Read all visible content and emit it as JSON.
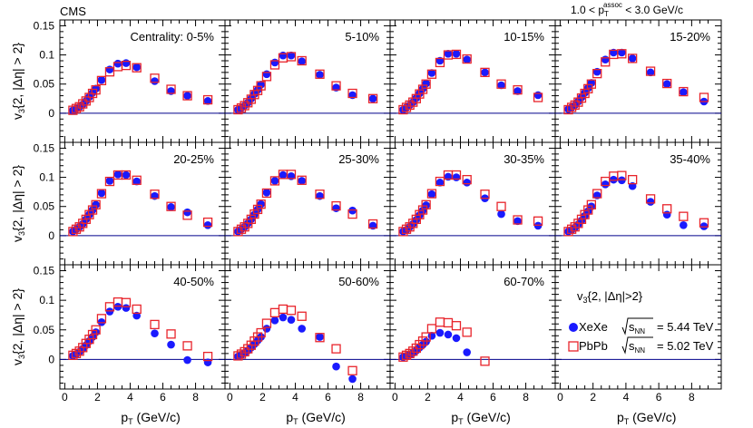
{
  "header": {
    "experiment": "CMS",
    "cut_prefix": "1.0 < p",
    "cut_sub": "T",
    "cut_sup": "assoc",
    "cut_suffix": " < 3.0 GeV/c"
  },
  "axis": {
    "x_label_main": "p",
    "x_label_sub": "T",
    "x_label_unit": " (GeV/c)",
    "y_label_v": "v",
    "y_label_sub": "3",
    "y_label_rest": "{2, |Δη| > 2}"
  },
  "legend": {
    "title_v": "v",
    "title_sub": "3",
    "title_rest": "{2, |Δη|>2}",
    "entries": [
      {
        "name": "XeXe",
        "energy": "= 5.44 TeV",
        "marker": "filled-circle"
      },
      {
        "name": "PbPb",
        "energy": "= 5.02 TeV",
        "marker": "open-square"
      }
    ],
    "sqrt_s_label": "s",
    "sqrt_s_sub": "NN"
  },
  "colors": {
    "xexe": "#1a1aff",
    "pbpb": "#e8242b",
    "zero_line": "#00008b"
  },
  "chart_data": {
    "type": "scatter",
    "xlabel": "pT (GeV/c)",
    "ylabel": "v3{2, |Δη| > 2}",
    "xlim": [
      -0.3,
      9.8
    ],
    "ylim": [
      -0.05,
      0.16
    ],
    "x_ticks": [
      0,
      2,
      4,
      6,
      8
    ],
    "y_ticks": [
      0,
      0.05,
      0.1,
      0.15
    ],
    "x": [
      0.5,
      0.7,
      0.9,
      1.1,
      1.3,
      1.5,
      1.7,
      1.9,
      2.25,
      2.75,
      3.25,
      3.75,
      4.4,
      5.5,
      6.5,
      7.5,
      8.75
    ],
    "panels": [
      {
        "label": "Centrality: 0-5%",
        "xexe": [
          0.005,
          0.008,
          0.011,
          0.015,
          0.021,
          0.028,
          0.035,
          0.042,
          0.057,
          0.075,
          0.085,
          0.086,
          0.079,
          0.055,
          0.038,
          0.03,
          0.021
        ],
        "pbpb": [
          0.005,
          0.008,
          0.011,
          0.016,
          0.021,
          0.027,
          0.034,
          0.04,
          0.056,
          0.071,
          0.08,
          0.082,
          0.078,
          0.06,
          0.041,
          0.03,
          0.023
        ]
      },
      {
        "label": "5-10%",
        "xexe": [
          0.006,
          0.009,
          0.013,
          0.018,
          0.025,
          0.033,
          0.04,
          0.049,
          0.067,
          0.087,
          0.099,
          0.099,
          0.089,
          0.066,
          0.044,
          0.031,
          0.025
        ],
        "pbpb": [
          0.006,
          0.009,
          0.013,
          0.018,
          0.024,
          0.032,
          0.039,
          0.047,
          0.063,
          0.083,
          0.095,
          0.097,
          0.09,
          0.067,
          0.047,
          0.034,
          0.025
        ]
      },
      {
        "label": "10-15%",
        "xexe": [
          0.006,
          0.01,
          0.014,
          0.019,
          0.026,
          0.034,
          0.042,
          0.051,
          0.069,
          0.09,
          0.102,
          0.102,
          0.092,
          0.07,
          0.048,
          0.038,
          0.031
        ],
        "pbpb": [
          0.006,
          0.01,
          0.014,
          0.019,
          0.025,
          0.033,
          0.041,
          0.05,
          0.067,
          0.087,
          0.1,
          0.101,
          0.093,
          0.07,
          0.05,
          0.04,
          0.027
        ]
      },
      {
        "label": "15-20%",
        "xexe": [
          0.007,
          0.01,
          0.014,
          0.02,
          0.027,
          0.035,
          0.043,
          0.052,
          0.071,
          0.092,
          0.104,
          0.104,
          0.094,
          0.07,
          0.05,
          0.036,
          0.02
        ],
        "pbpb": [
          0.006,
          0.01,
          0.014,
          0.019,
          0.026,
          0.034,
          0.042,
          0.05,
          0.068,
          0.088,
          0.101,
          0.102,
          0.094,
          0.072,
          0.051,
          0.037,
          0.027
        ]
      },
      {
        "label": "20-25%",
        "xexe": [
          0.007,
          0.011,
          0.015,
          0.02,
          0.028,
          0.036,
          0.044,
          0.053,
          0.073,
          0.094,
          0.105,
          0.104,
          0.093,
          0.068,
          0.049,
          0.04,
          0.018
        ],
        "pbpb": [
          0.007,
          0.011,
          0.015,
          0.021,
          0.028,
          0.036,
          0.044,
          0.053,
          0.072,
          0.093,
          0.104,
          0.104,
          0.095,
          0.071,
          0.05,
          0.035,
          0.023
        ]
      },
      {
        "label": "25-30%",
        "xexe": [
          0.007,
          0.011,
          0.015,
          0.021,
          0.028,
          0.036,
          0.045,
          0.054,
          0.074,
          0.094,
          0.104,
          0.102,
          0.094,
          0.068,
          0.047,
          0.043,
          0.017
        ],
        "pbpb": [
          0.007,
          0.011,
          0.015,
          0.021,
          0.028,
          0.037,
          0.045,
          0.054,
          0.073,
          0.094,
          0.105,
          0.105,
          0.095,
          0.071,
          0.051,
          0.037,
          0.02
        ]
      },
      {
        "label": "30-35%",
        "xexe": [
          0.007,
          0.01,
          0.015,
          0.02,
          0.027,
          0.035,
          0.043,
          0.052,
          0.071,
          0.091,
          0.101,
          0.1,
          0.091,
          0.064,
          0.037,
          0.025,
          0.017
        ],
        "pbpb": [
          0.007,
          0.011,
          0.015,
          0.021,
          0.028,
          0.036,
          0.044,
          0.053,
          0.072,
          0.093,
          0.104,
          0.104,
          0.096,
          0.071,
          0.05,
          0.027,
          0.025
        ]
      },
      {
        "label": "35-40%",
        "xexe": [
          0.007,
          0.01,
          0.014,
          0.019,
          0.026,
          0.034,
          0.042,
          0.05,
          0.069,
          0.088,
          0.096,
          0.095,
          0.085,
          0.058,
          0.036,
          0.018,
          0.016
        ],
        "pbpb": [
          0.007,
          0.011,
          0.015,
          0.021,
          0.028,
          0.036,
          0.044,
          0.053,
          0.072,
          0.093,
          0.102,
          0.103,
          0.096,
          0.063,
          0.046,
          0.033,
          0.022
        ]
      },
      {
        "label": "40-50%",
        "xexe": [
          0.006,
          0.009,
          0.013,
          0.018,
          0.024,
          0.031,
          0.038,
          0.046,
          0.063,
          0.081,
          0.089,
          0.087,
          0.074,
          0.044,
          0.025,
          -0.001,
          -0.005
        ],
        "pbpb": [
          0.007,
          0.01,
          0.014,
          0.02,
          0.027,
          0.034,
          0.042,
          0.05,
          0.069,
          0.089,
          0.097,
          0.096,
          0.085,
          0.059,
          0.043,
          0.023,
          0.005
        ]
      },
      {
        "label": "50-60%",
        "xexe": [
          0.005,
          0.008,
          0.011,
          0.015,
          0.02,
          0.026,
          0.032,
          0.038,
          0.052,
          0.066,
          0.071,
          0.067,
          0.052,
          0.038,
          -0.012,
          -0.033,
          null
        ],
        "pbpb": [
          0.006,
          0.009,
          0.013,
          0.018,
          0.024,
          0.031,
          0.038,
          0.045,
          0.061,
          0.079,
          0.085,
          0.083,
          0.073,
          0.037,
          0.018,
          -0.019,
          null
        ]
      },
      {
        "label": "60-70%",
        "xexe": [
          0.004,
          0.006,
          0.008,
          0.011,
          0.015,
          0.02,
          0.025,
          0.03,
          0.04,
          0.045,
          0.042,
          0.036,
          0.012,
          null,
          null,
          null,
          null
        ],
        "pbpb": [
          0.004,
          0.007,
          0.01,
          0.014,
          0.019,
          0.025,
          0.031,
          0.038,
          0.052,
          0.063,
          0.062,
          0.057,
          0.046,
          -0.003,
          null,
          null,
          null
        ]
      }
    ]
  }
}
